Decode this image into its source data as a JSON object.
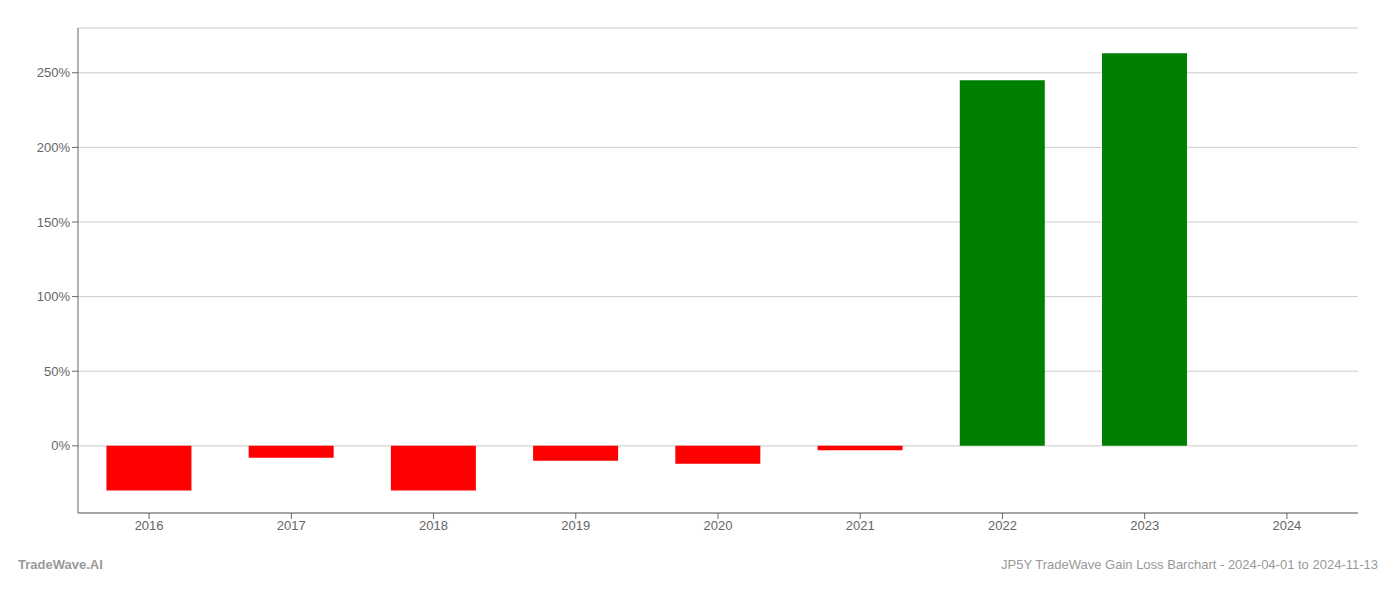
{
  "chart_data": {
    "type": "bar",
    "categories": [
      "2016",
      "2017",
      "2018",
      "2019",
      "2020",
      "2021",
      "2022",
      "2023",
      "2024"
    ],
    "values": [
      -30.0,
      -8.0,
      -30.0,
      -10.0,
      -12.0,
      -3.0,
      245.0,
      263.0,
      0.0
    ],
    "colors": [
      "#ff0000",
      "#ff0000",
      "#ff0000",
      "#ff0000",
      "#ff0000",
      "#ff0000",
      "#008000",
      "#008000",
      "#ffffff"
    ],
    "ylim": [
      -45,
      280
    ],
    "yticks": [
      {
        "value": 0,
        "label": "0%"
      },
      {
        "value": 50,
        "label": "50%"
      },
      {
        "value": 100,
        "label": "100%"
      },
      {
        "value": 150,
        "label": "150%"
      },
      {
        "value": 200,
        "label": "200%"
      },
      {
        "value": 250,
        "label": "250%"
      }
    ],
    "grid": true,
    "annotations": [
      "TradeWave.AI",
      "JP5Y TradeWave Gain Loss Barchart - 2024-04-01 to 2024-11-13"
    ]
  }
}
